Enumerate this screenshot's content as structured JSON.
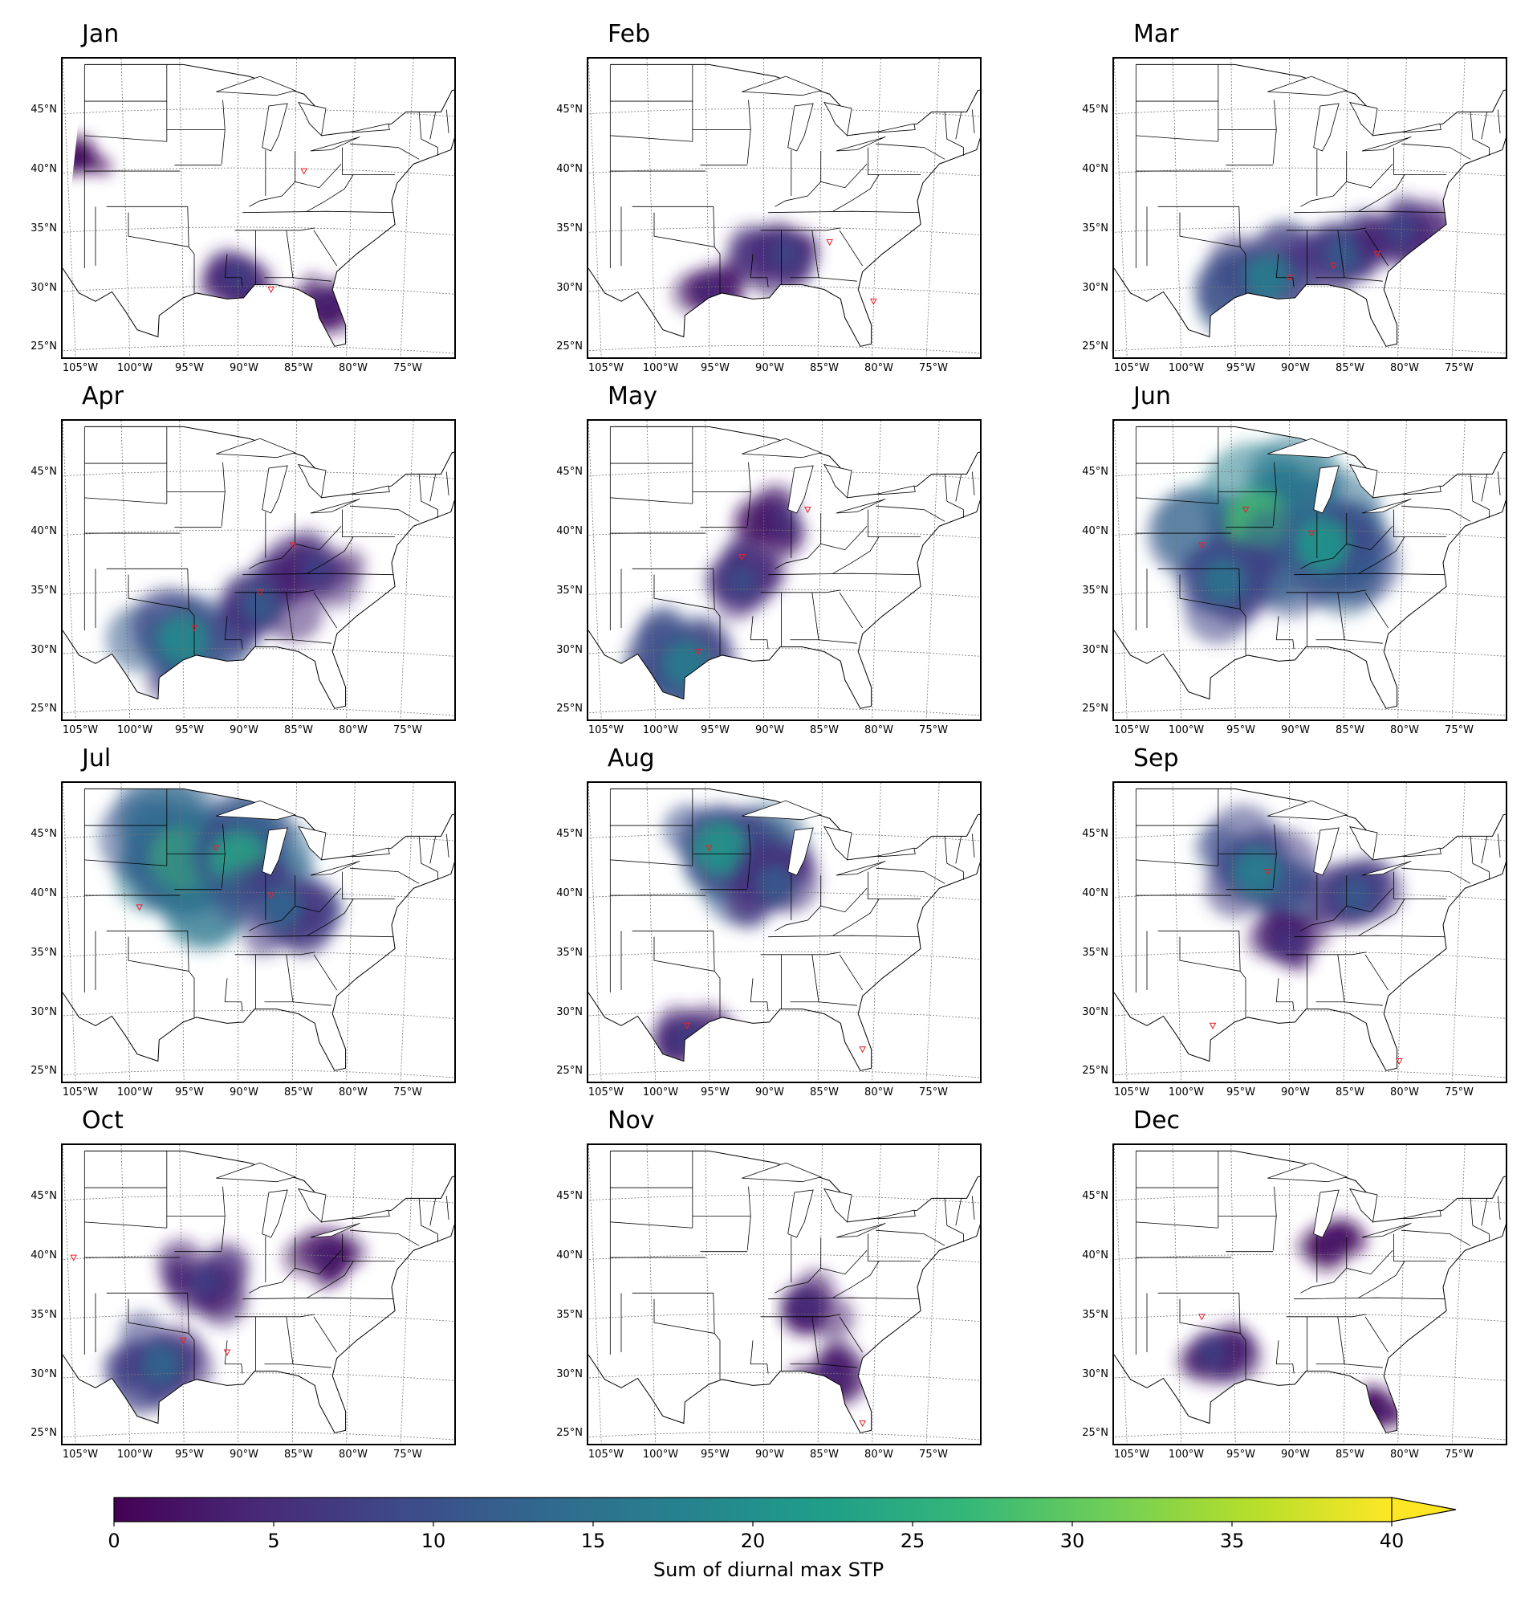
{
  "months": [
    "Jan",
    "Feb",
    "Mar",
    "Apr",
    "May",
    "Jun",
    "Jul",
    "Aug",
    "Sep",
    "Oct",
    "Nov",
    "Dec"
  ],
  "lat_ticks": [
    "45°N",
    "40°N",
    "35°N",
    "30°N",
    "25°N"
  ],
  "lon_ticks": [
    "105°W",
    "100°W",
    "95°W",
    "90°W",
    "85°W",
    "80°W",
    "75°W"
  ],
  "colorbar": {
    "label": "Sum of diurnal max STP",
    "ticks": [
      "0",
      "5",
      "10",
      "15",
      "20",
      "25",
      "30",
      "35",
      "40"
    ],
    "range": [
      0,
      40
    ],
    "extend": "max",
    "colormap": "viridis",
    "colors": [
      "#440154",
      "#482878",
      "#3e4989",
      "#31688e",
      "#26828e",
      "#1f9e89",
      "#35b779",
      "#6ece58",
      "#b5de2b",
      "#fde725"
    ]
  },
  "marker_color": "#e8202a",
  "chart_data": {
    "type": "heatmap",
    "colorbar_label": "Sum of diurnal max STP",
    "colorbar_range": [
      0,
      40
    ],
    "colorbar_extend": "max",
    "panels": [
      {
        "month": "Jan",
        "peak_intensity": 12,
        "regions": [
          {
            "lon": -90,
            "lat": 31,
            "intensity": 8
          },
          {
            "lon": -82,
            "lat": 29,
            "intensity": 4
          },
          {
            "lon": -104,
            "lat": 41,
            "intensity": 2
          }
        ],
        "report_markers": [
          {
            "lon": -84,
            "lat": 40
          },
          {
            "lon": -87,
            "lat": 30
          }
        ]
      },
      {
        "month": "Feb",
        "peak_intensity": 12,
        "regions": [
          {
            "lon": -88,
            "lat": 33,
            "intensity": 9
          },
          {
            "lon": -95,
            "lat": 30,
            "intensity": 5
          }
        ],
        "report_markers": [
          {
            "lon": -84,
            "lat": 34
          },
          {
            "lon": -80,
            "lat": 29
          }
        ]
      },
      {
        "month": "Mar",
        "peak_intensity": 22,
        "regions": [
          {
            "lon": -92,
            "lat": 31,
            "intensity": 18
          },
          {
            "lon": -85,
            "lat": 33,
            "intensity": 12
          },
          {
            "lon": -80,
            "lat": 35,
            "intensity": 9
          }
        ],
        "report_markers": [
          {
            "lon": -90,
            "lat": 31
          },
          {
            "lon": -86,
            "lat": 32
          },
          {
            "lon": -82,
            "lat": 33
          }
        ]
      },
      {
        "month": "Apr",
        "peak_intensity": 25,
        "regions": [
          {
            "lon": -95,
            "lat": 31,
            "intensity": 20
          },
          {
            "lon": -88,
            "lat": 34,
            "intensity": 12
          },
          {
            "lon": -83,
            "lat": 37,
            "intensity": 8
          }
        ],
        "report_markers": [
          {
            "lon": -94,
            "lat": 32
          },
          {
            "lon": -88,
            "lat": 35
          },
          {
            "lon": -85,
            "lat": 39
          }
        ]
      },
      {
        "month": "May",
        "peak_intensity": 24,
        "regions": [
          {
            "lon": -97,
            "lat": 29,
            "intensity": 18
          },
          {
            "lon": -92,
            "lat": 36,
            "intensity": 10
          },
          {
            "lon": -88,
            "lat": 41,
            "intensity": 6
          }
        ],
        "report_markers": [
          {
            "lon": -96,
            "lat": 30
          },
          {
            "lon": -92,
            "lat": 38
          },
          {
            "lon": -86,
            "lat": 42
          }
        ]
      },
      {
        "month": "Jun",
        "peak_intensity": 32,
        "regions": [
          {
            "lon": -93,
            "lat": 41,
            "intensity": 28
          },
          {
            "lon": -87,
            "lat": 39,
            "intensity": 22
          },
          {
            "lon": -96,
            "lat": 36,
            "intensity": 16
          }
        ],
        "report_markers": [
          {
            "lon": -94,
            "lat": 42
          },
          {
            "lon": -88,
            "lat": 40
          },
          {
            "lon": -98,
            "lat": 39
          }
        ]
      },
      {
        "month": "Jul",
        "peak_intensity": 30,
        "regions": [
          {
            "lon": -95,
            "lat": 43,
            "intensity": 28
          },
          {
            "lon": -90,
            "lat": 43,
            "intensity": 24
          },
          {
            "lon": -86,
            "lat": 39,
            "intensity": 14
          }
        ],
        "report_markers": [
          {
            "lon": -92,
            "lat": 44
          },
          {
            "lon": -87,
            "lat": 40
          },
          {
            "lon": -99,
            "lat": 39
          }
        ]
      },
      {
        "month": "Aug",
        "peak_intensity": 26,
        "regions": [
          {
            "lon": -94,
            "lat": 44,
            "intensity": 22
          },
          {
            "lon": -89,
            "lat": 41,
            "intensity": 12
          },
          {
            "lon": -97,
            "lat": 28,
            "intensity": 8
          }
        ],
        "report_markers": [
          {
            "lon": -95,
            "lat": 44
          },
          {
            "lon": -97,
            "lat": 29
          },
          {
            "lon": -81,
            "lat": 27
          }
        ]
      },
      {
        "month": "Sep",
        "peak_intensity": 24,
        "regions": [
          {
            "lon": -93,
            "lat": 42,
            "intensity": 18
          },
          {
            "lon": -84,
            "lat": 40,
            "intensity": 12
          },
          {
            "lon": -90,
            "lat": 36,
            "intensity": 6
          }
        ],
        "report_markers": [
          {
            "lon": -92,
            "lat": 42
          },
          {
            "lon": -97,
            "lat": 29
          },
          {
            "lon": -80,
            "lat": 26
          }
        ]
      },
      {
        "month": "Oct",
        "peak_intensity": 20,
        "regions": [
          {
            "lon": -97,
            "lat": 31,
            "intensity": 14
          },
          {
            "lon": -93,
            "lat": 38,
            "intensity": 8
          },
          {
            "lon": -82,
            "lat": 40,
            "intensity": 4
          }
        ],
        "report_markers": [
          {
            "lon": -95,
            "lat": 33
          },
          {
            "lon": -91,
            "lat": 32
          },
          {
            "lon": -105,
            "lat": 40
          }
        ]
      },
      {
        "month": "Nov",
        "peak_intensity": 10,
        "regions": [
          {
            "lon": -86,
            "lat": 36,
            "intensity": 6
          },
          {
            "lon": -84,
            "lat": 30,
            "intensity": 5
          }
        ],
        "report_markers": [
          {
            "lon": -81,
            "lat": 26
          }
        ]
      },
      {
        "month": "Dec",
        "peak_intensity": 12,
        "regions": [
          {
            "lon": -97,
            "lat": 32,
            "intensity": 8
          },
          {
            "lon": -82,
            "lat": 27,
            "intensity": 3
          },
          {
            "lon": -86,
            "lat": 41,
            "intensity": 3
          }
        ],
        "report_markers": [
          {
            "lon": -98,
            "lat": 35
          }
        ]
      }
    ]
  }
}
